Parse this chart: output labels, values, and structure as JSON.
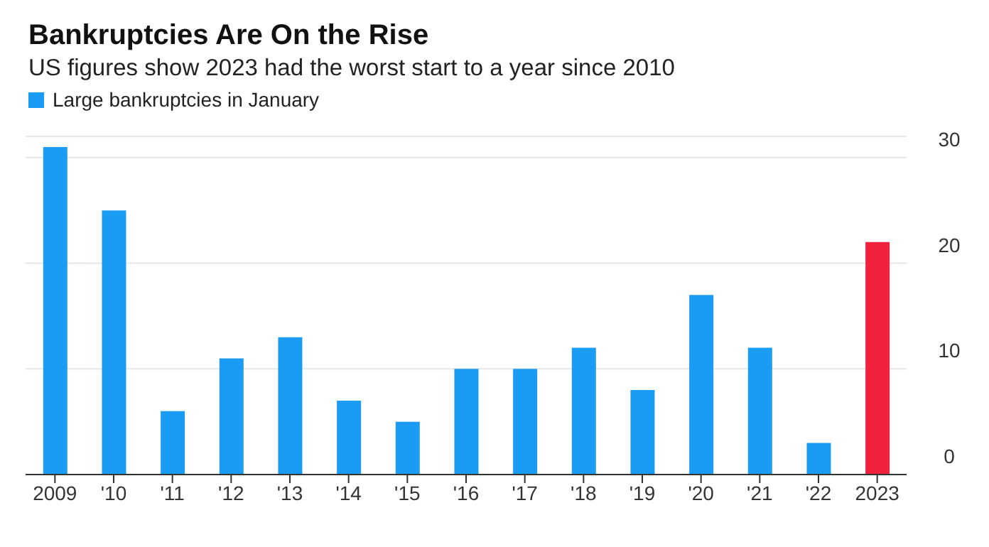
{
  "chart_data": {
    "type": "bar",
    "title": "Bankruptcies Are On the Rise",
    "subtitle": "US figures show 2023 had the worst start to a year since 2010",
    "categories": [
      "2009",
      "'10",
      "'11",
      "'12",
      "'13",
      "'14",
      "'15",
      "'16",
      "'17",
      "'18",
      "'19",
      "'20",
      "'21",
      "'22",
      "2023"
    ],
    "series": [
      {
        "name": "Large bankruptcies in January",
        "color": "#1a9cf5",
        "colors": [
          "#1a9cf5",
          "#1a9cf5",
          "#1a9cf5",
          "#1a9cf5",
          "#1a9cf5",
          "#1a9cf5",
          "#1a9cf5",
          "#1a9cf5",
          "#1a9cf5",
          "#1a9cf5",
          "#1a9cf5",
          "#1a9cf5",
          "#1a9cf5",
          "#1a9cf5",
          "#f0213d"
        ],
        "values": [
          31,
          25,
          6,
          11,
          13,
          7,
          5,
          10,
          10,
          12,
          8,
          17,
          12,
          3,
          22
        ]
      }
    ],
    "ylim": [
      0,
      32
    ],
    "yticks": [
      0,
      10,
      20,
      30
    ],
    "grid": "y",
    "legend": "top left"
  }
}
